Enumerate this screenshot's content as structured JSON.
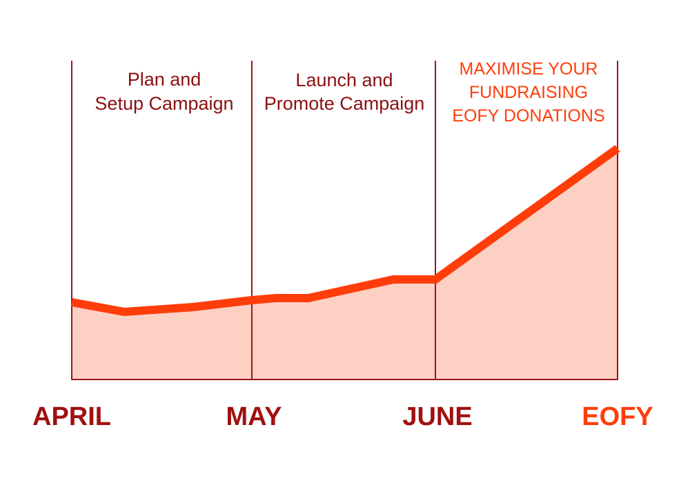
{
  "phases": [
    {
      "lines": [
        "Plan and",
        "Setup Campaign"
      ]
    },
    {
      "lines": [
        "Launch and",
        "Promote Campaign"
      ]
    },
    {
      "lines": [
        "MAXIMISE YOUR",
        "FUNDRAISING",
        "EOFY DONATIONS"
      ]
    }
  ],
  "months": [
    "APRIL",
    "MAY",
    "JUNE",
    "EOFY"
  ]
}
